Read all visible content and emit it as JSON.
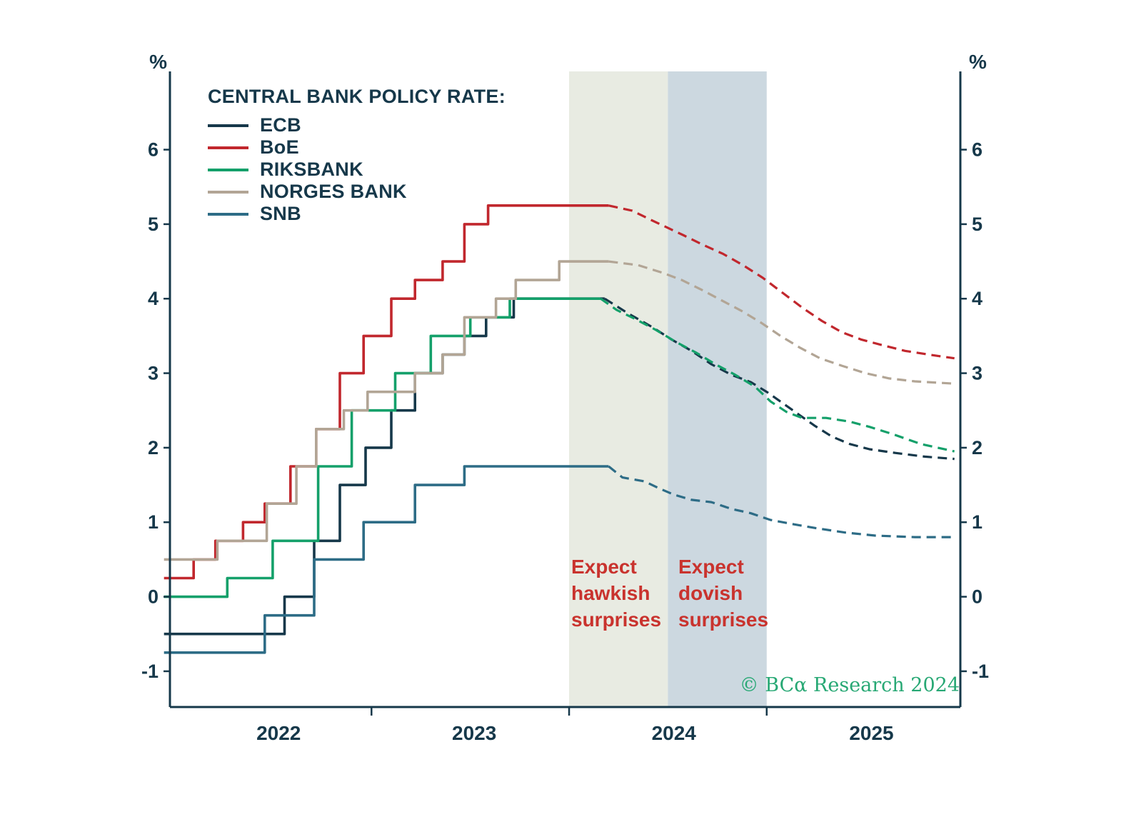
{
  "legend": {
    "title": "CENTRAL BANK POLICY RATE:"
  },
  "annotations": {
    "hawkish": "Expect\nhawkish\nsurprises",
    "dovish": "Expect\ndovish\nsurprises",
    "color": "#c9332e"
  },
  "copyright": {
    "text": "© BCα Research 2024",
    "color": "#27a874"
  },
  "chart_data": {
    "type": "line",
    "title": "CENTRAL BANK POLICY RATE:",
    "axis_unit_left": "%",
    "axis_unit_right": "%",
    "axis_color": "#16384a",
    "xlim": [
      2021.98,
      2025.98
    ],
    "ylim": [
      -1.48,
      7.05
    ],
    "yticks": [
      -1,
      0,
      1,
      2,
      3,
      4,
      5,
      6
    ],
    "xticks": [
      2023,
      2024,
      2025
    ],
    "x_year_labels": [
      {
        "pos": 2022.53,
        "label": "2022"
      },
      {
        "pos": 2023.52,
        "label": "2023"
      },
      {
        "pos": 2024.53,
        "label": "2024"
      },
      {
        "pos": 2025.53,
        "label": "2025"
      }
    ],
    "bands": [
      {
        "from": 2024.0,
        "to": 2024.5,
        "color": "#e8ebe2",
        "label": "Expect hawkish surprises"
      },
      {
        "from": 2024.5,
        "to": 2025.0,
        "color": "#ccd8e0",
        "label": "Expect dovish surprises"
      }
    ],
    "series": [
      {
        "name": "ECB",
        "color": "#16384a",
        "solid": [
          [
            2021.95,
            -0.5
          ],
          [
            2022.56,
            0.0
          ],
          [
            2022.71,
            0.75
          ],
          [
            2022.84,
            1.5
          ],
          [
            2022.97,
            2.0
          ],
          [
            2023.1,
            2.5
          ],
          [
            2023.22,
            3.0
          ],
          [
            2023.36,
            3.25
          ],
          [
            2023.47,
            3.5
          ],
          [
            2023.58,
            3.75
          ],
          [
            2023.72,
            4.0
          ],
          [
            2024.18,
            4.0
          ]
        ],
        "dashed": [
          [
            2024.18,
            4.0
          ],
          [
            2024.3,
            3.8
          ],
          [
            2024.42,
            3.62
          ],
          [
            2024.52,
            3.45
          ],
          [
            2024.62,
            3.3
          ],
          [
            2024.72,
            3.12
          ],
          [
            2024.82,
            2.98
          ],
          [
            2024.92,
            2.88
          ],
          [
            2025.0,
            2.75
          ],
          [
            2025.08,
            2.6
          ],
          [
            2025.16,
            2.45
          ],
          [
            2025.24,
            2.3
          ],
          [
            2025.33,
            2.15
          ],
          [
            2025.42,
            2.05
          ],
          [
            2025.52,
            1.98
          ],
          [
            2025.65,
            1.93
          ],
          [
            2025.8,
            1.88
          ],
          [
            2025.95,
            1.85
          ]
        ]
      },
      {
        "name": "BoE",
        "color": "#c1272d",
        "solid": [
          [
            2021.95,
            0.25
          ],
          [
            2022.1,
            0.5
          ],
          [
            2022.21,
            0.75
          ],
          [
            2022.35,
            1.0
          ],
          [
            2022.46,
            1.25
          ],
          [
            2022.59,
            1.75
          ],
          [
            2022.72,
            2.25
          ],
          [
            2022.84,
            3.0
          ],
          [
            2022.96,
            3.5
          ],
          [
            2023.1,
            4.0
          ],
          [
            2023.22,
            4.25
          ],
          [
            2023.36,
            4.5
          ],
          [
            2023.47,
            5.0
          ],
          [
            2023.59,
            5.25
          ],
          [
            2024.2,
            5.25
          ]
        ],
        "dashed": [
          [
            2024.2,
            5.25
          ],
          [
            2024.32,
            5.18
          ],
          [
            2024.42,
            5.05
          ],
          [
            2024.5,
            4.95
          ],
          [
            2024.58,
            4.85
          ],
          [
            2024.68,
            4.72
          ],
          [
            2024.78,
            4.6
          ],
          [
            2024.88,
            4.45
          ],
          [
            2024.98,
            4.28
          ],
          [
            2025.08,
            4.08
          ],
          [
            2025.18,
            3.88
          ],
          [
            2025.28,
            3.7
          ],
          [
            2025.38,
            3.55
          ],
          [
            2025.48,
            3.45
          ],
          [
            2025.58,
            3.38
          ],
          [
            2025.7,
            3.3
          ],
          [
            2025.82,
            3.25
          ],
          [
            2025.95,
            3.2
          ]
        ]
      },
      {
        "name": "RIKSBANK",
        "color": "#14a06a",
        "solid": [
          [
            2021.95,
            0.0
          ],
          [
            2022.27,
            0.25
          ],
          [
            2022.5,
            0.75
          ],
          [
            2022.73,
            1.75
          ],
          [
            2022.9,
            2.5
          ],
          [
            2023.12,
            3.0
          ],
          [
            2023.3,
            3.5
          ],
          [
            2023.5,
            3.75
          ],
          [
            2023.7,
            4.0
          ],
          [
            2024.16,
            4.0
          ]
        ],
        "dashed": [
          [
            2024.16,
            4.0
          ],
          [
            2024.24,
            3.85
          ],
          [
            2024.34,
            3.72
          ],
          [
            2024.44,
            3.58
          ],
          [
            2024.54,
            3.42
          ],
          [
            2024.64,
            3.28
          ],
          [
            2024.74,
            3.12
          ],
          [
            2024.84,
            2.98
          ],
          [
            2024.94,
            2.82
          ],
          [
            2025.02,
            2.62
          ],
          [
            2025.1,
            2.48
          ],
          [
            2025.18,
            2.4
          ],
          [
            2025.3,
            2.4
          ],
          [
            2025.42,
            2.35
          ],
          [
            2025.52,
            2.28
          ],
          [
            2025.64,
            2.18
          ],
          [
            2025.78,
            2.05
          ],
          [
            2025.95,
            1.95
          ]
        ]
      },
      {
        "name": "NORGES BANK",
        "color": "#b2a595",
        "solid": [
          [
            2021.95,
            0.5
          ],
          [
            2022.22,
            0.75
          ],
          [
            2022.47,
            1.25
          ],
          [
            2022.62,
            1.75
          ],
          [
            2022.72,
            2.25
          ],
          [
            2022.86,
            2.5
          ],
          [
            2022.98,
            2.75
          ],
          [
            2023.22,
            3.0
          ],
          [
            2023.36,
            3.25
          ],
          [
            2023.47,
            3.75
          ],
          [
            2023.63,
            4.0
          ],
          [
            2023.73,
            4.25
          ],
          [
            2023.95,
            4.5
          ],
          [
            2024.2,
            4.5
          ]
        ],
        "dashed": [
          [
            2024.2,
            4.5
          ],
          [
            2024.35,
            4.45
          ],
          [
            2024.47,
            4.35
          ],
          [
            2024.57,
            4.25
          ],
          [
            2024.67,
            4.12
          ],
          [
            2024.77,
            3.98
          ],
          [
            2024.87,
            3.84
          ],
          [
            2024.97,
            3.68
          ],
          [
            2025.07,
            3.5
          ],
          [
            2025.17,
            3.34
          ],
          [
            2025.27,
            3.2
          ],
          [
            2025.38,
            3.1
          ],
          [
            2025.5,
            3.0
          ],
          [
            2025.62,
            2.93
          ],
          [
            2025.75,
            2.89
          ],
          [
            2025.95,
            2.86
          ]
        ]
      },
      {
        "name": "SNB",
        "color": "#2d6c86",
        "solid": [
          [
            2021.95,
            -0.75
          ],
          [
            2022.46,
            -0.25
          ],
          [
            2022.71,
            0.5
          ],
          [
            2022.96,
            1.0
          ],
          [
            2023.22,
            1.5
          ],
          [
            2023.47,
            1.75
          ],
          [
            2024.2,
            1.75
          ]
        ],
        "dashed": [
          [
            2024.2,
            1.75
          ],
          [
            2024.27,
            1.6
          ],
          [
            2024.38,
            1.55
          ],
          [
            2024.46,
            1.45
          ],
          [
            2024.53,
            1.37
          ],
          [
            2024.62,
            1.3
          ],
          [
            2024.72,
            1.27
          ],
          [
            2024.82,
            1.18
          ],
          [
            2024.92,
            1.12
          ],
          [
            2025.02,
            1.03
          ],
          [
            2025.12,
            0.98
          ],
          [
            2025.25,
            0.92
          ],
          [
            2025.4,
            0.86
          ],
          [
            2025.55,
            0.82
          ],
          [
            2025.75,
            0.8
          ],
          [
            2025.95,
            0.8
          ]
        ]
      }
    ]
  }
}
